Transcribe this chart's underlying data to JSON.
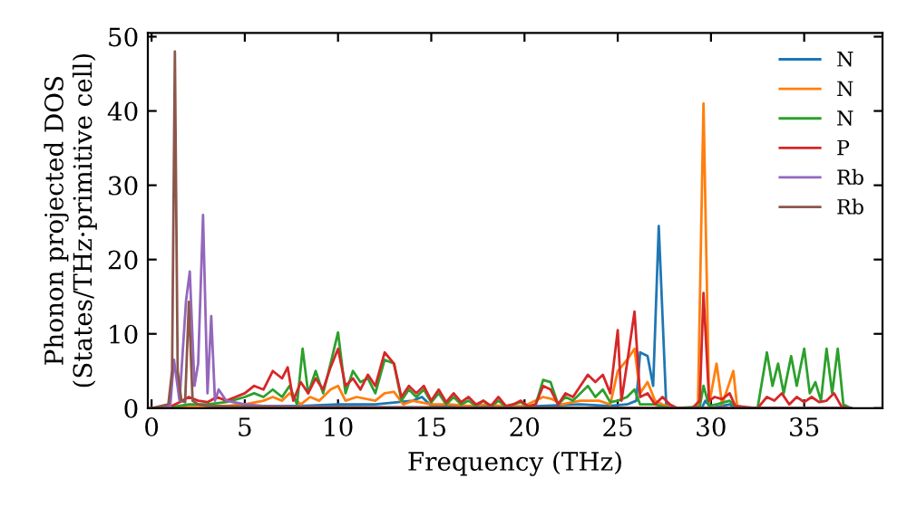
{
  "chart_data": {
    "type": "line",
    "xlabel": "Frequency (THz)",
    "ylabel": "Phonon projected DOS\n(States/THz·primitive cell)",
    "xlim": [
      -0.2,
      39.2
    ],
    "ylim": [
      0,
      50.5
    ],
    "xticks": [
      0,
      5,
      10,
      15,
      20,
      25,
      30,
      35
    ],
    "yticks": [
      0,
      10,
      20,
      30,
      40,
      50
    ],
    "legend": "top right",
    "grid": false,
    "series": [
      {
        "name": "N",
        "color": "#1f77b4",
        "x": [
          5,
          8,
          10,
          12,
          14,
          14.5,
          15,
          17,
          20,
          23,
          24.5,
          25.5,
          26,
          26.2,
          26.6,
          26.9,
          27.2,
          27.6,
          28,
          29.5,
          29.7,
          30,
          31,
          31.3,
          37.5
        ],
        "values": [
          0.3,
          0.3,
          0.5,
          0.5,
          1,
          1.5,
          0.3,
          0.3,
          0.2,
          0.5,
          0.3,
          0.5,
          1,
          7.5,
          7,
          3,
          24.5,
          0.5,
          0,
          0,
          1,
          0,
          0.5,
          0,
          0
        ]
      },
      {
        "name": "N",
        "color": "#ff7f0e",
        "x": [
          0,
          2,
          4,
          5,
          6,
          6.5,
          7,
          7.4,
          8,
          8.5,
          9,
          9.6,
          10,
          10.4,
          11,
          12,
          12.5,
          13,
          13.5,
          14,
          15,
          16,
          17,
          18,
          19,
          20,
          21,
          21.5,
          22,
          23,
          24,
          24.6,
          25,
          25.5,
          25.9,
          26.2,
          26.6,
          27,
          27.4,
          28,
          29.3,
          29.6,
          29.9,
          30.3,
          30.6,
          31,
          31.2,
          31.4,
          32,
          37.5
        ],
        "values": [
          0,
          0.3,
          0.3,
          0.5,
          1,
          1.5,
          1,
          2,
          0.5,
          1.5,
          1,
          2.5,
          3,
          1,
          1.5,
          1,
          2,
          2.2,
          0.5,
          1,
          0.5,
          0.5,
          0.3,
          0.5,
          0.2,
          0.3,
          1.5,
          1.2,
          0.5,
          1,
          1,
          0.5,
          5,
          6.5,
          8,
          2,
          3.5,
          1,
          0.5,
          0,
          0,
          41,
          0.5,
          6,
          0.5,
          3.5,
          5,
          0.3,
          0,
          0
        ]
      },
      {
        "name": "N",
        "color": "#2ca02c",
        "x": [
          0,
          1,
          2,
          3,
          4,
          5,
          5.5,
          6,
          6.5,
          7,
          7.4,
          7.8,
          8.1,
          8.4,
          8.8,
          9.2,
          9.6,
          10,
          10.4,
          10.8,
          11.2,
          11.6,
          12,
          12.5,
          13,
          13.4,
          13.8,
          14.2,
          14.6,
          15,
          15.4,
          15.8,
          16.2,
          16.6,
          17,
          17.4,
          17.8,
          18.2,
          18.6,
          19,
          19.4,
          19.8,
          20.2,
          20.6,
          21,
          21.4,
          21.8,
          22.2,
          22.6,
          23,
          23.4,
          23.8,
          24.2,
          24.6,
          25,
          25.5,
          25.9,
          26.2,
          27,
          27.4,
          28,
          29.4,
          29.6,
          29.9,
          30.3,
          31,
          31.3,
          32.5,
          33,
          33.3,
          33.6,
          33.9,
          34.3,
          34.6,
          35,
          35.3,
          35.6,
          35.9,
          36.2,
          36.5,
          36.8,
          37.1,
          37.5
        ],
        "values": [
          0,
          0.1,
          0.5,
          0.5,
          0.8,
          1.5,
          2,
          1.5,
          2.5,
          1.5,
          3,
          0.5,
          8,
          2,
          5,
          2,
          6,
          10.2,
          2,
          5,
          3.5,
          4,
          2,
          6.5,
          6,
          1,
          2.5,
          1.5,
          2.5,
          0.8,
          2,
          0.5,
          1.5,
          0.5,
          1,
          0.3,
          1,
          0.2,
          1,
          0.2,
          0.5,
          0.8,
          0.2,
          0.5,
          3.8,
          3.5,
          0.5,
          1.5,
          1,
          2,
          3,
          1.5,
          2.5,
          0.8,
          1,
          1.5,
          2.5,
          0.5,
          0.5,
          0.2,
          0,
          0.2,
          3,
          0.3,
          0.5,
          1,
          0.1,
          0,
          7.5,
          3,
          6,
          2,
          7,
          3,
          8,
          2,
          3.5,
          1,
          8,
          2,
          8,
          0.5,
          0
        ]
      },
      {
        "name": "P",
        "color": "#d62728",
        "x": [
          0,
          1,
          1.5,
          2,
          2.5,
          3,
          3.5,
          4,
          4.5,
          5,
          5.5,
          6,
          6.5,
          7,
          7.3,
          7.6,
          8,
          8.4,
          8.8,
          9.2,
          9.6,
          10,
          10.4,
          10.8,
          11.2,
          11.6,
          12,
          12.5,
          13,
          13.4,
          13.8,
          14.2,
          14.6,
          15,
          15.4,
          15.8,
          16.2,
          16.6,
          17,
          17.4,
          17.8,
          18.2,
          18.6,
          19,
          19.4,
          19.8,
          20.2,
          20.6,
          21,
          21.4,
          21.8,
          22.2,
          22.6,
          23,
          23.4,
          23.8,
          24.2,
          24.6,
          25,
          25.2,
          25.5,
          25.9,
          26.2,
          26.6,
          27,
          27.4,
          27.8,
          28.2,
          29,
          29.4,
          29.6,
          29.9,
          30.2,
          30.6,
          31,
          31.3,
          32.5,
          33,
          33.4,
          33.8,
          34.2,
          34.6,
          35,
          35.4,
          35.8,
          36.2,
          36.6,
          37,
          37.5
        ],
        "values": [
          0,
          0.2,
          0.8,
          1.5,
          1,
          0.8,
          1.5,
          1,
          1.5,
          2,
          3,
          2.5,
          5,
          4,
          5.5,
          1,
          3.5,
          2,
          4,
          2.5,
          5.5,
          8,
          3,
          4,
          2.5,
          4.5,
          3,
          7.5,
          6,
          1.5,
          3,
          2,
          3,
          1,
          2.5,
          0.8,
          2,
          0.8,
          1.5,
          0.5,
          1,
          0.3,
          1.5,
          0.3,
          0.5,
          1,
          0.2,
          0.5,
          3,
          2.5,
          0.5,
          2,
          1.5,
          3,
          4.5,
          3.5,
          4.5,
          2,
          10.5,
          1,
          6,
          13,
          1.5,
          2,
          0.5,
          1.5,
          0.5,
          0,
          0,
          1,
          15.5,
          1,
          1.5,
          1.2,
          2,
          0.3,
          0,
          1.5,
          1,
          2,
          0.5,
          1.5,
          0.8,
          1.5,
          0.8,
          1,
          2,
          0.2,
          0
        ]
      },
      {
        "name": "Rb",
        "color": "#9467bd",
        "x": [
          0,
          1,
          1.2,
          1.5,
          1.85,
          2.05,
          2.3,
          2.5,
          2.76,
          3,
          3.2,
          3.4,
          3.6,
          4,
          5,
          6,
          8,
          12,
          37.5
        ],
        "values": [
          0,
          0.2,
          6.5,
          1,
          14.5,
          18.4,
          3,
          6,
          26,
          2,
          12.4,
          1,
          2.5,
          1,
          0.5,
          0.3,
          0.2,
          0.1,
          0
        ]
      },
      {
        "name": "Rb",
        "color": "#8c564b",
        "x": [
          0,
          0.9,
          1.1,
          1.25,
          1.4,
          1.6,
          1.8,
          2.0,
          2.2,
          2.5,
          3,
          5,
          8,
          37.5
        ],
        "values": [
          0,
          0.5,
          5,
          48,
          5,
          1,
          0.8,
          14.3,
          1,
          0.5,
          0.3,
          0.2,
          0.1,
          0
        ]
      }
    ]
  }
}
